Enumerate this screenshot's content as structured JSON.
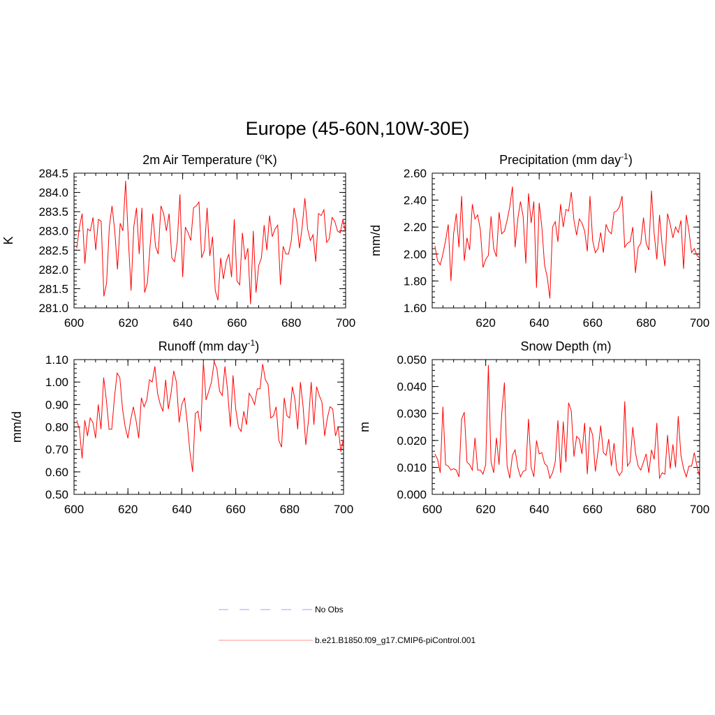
{
  "title": "Europe (45-60N,10W-30E)",
  "colors": {
    "series": "#ff0000",
    "obs": "#a0a0ff"
  },
  "legend": [
    {
      "label": "No Obs",
      "style": "dashed",
      "color": "#a0a0ff"
    },
    {
      "label": "b.e21.B1850.f09_g17.CMIP6-piControl.001",
      "style": "solid",
      "color": "#ff9090"
    }
  ],
  "chart_data": [
    {
      "type": "line",
      "title": "2m Air Temperature (",
      "title_sup": "o",
      "title_after": "K)",
      "title_sup2": "",
      "title_after2": "",
      "ylabel": "K",
      "xlim": [
        600,
        700
      ],
      "ylim": [
        281.0,
        284.5
      ],
      "xticks": [
        600,
        620,
        640,
        660,
        680,
        700
      ],
      "xtick_labels": [
        "600",
        "620",
        "640",
        "660",
        "680",
        "700"
      ],
      "yticks": [
        281.0,
        281.5,
        282.0,
        282.5,
        283.0,
        283.5,
        284.0,
        284.5
      ],
      "ytick_labels": [
        "281.0",
        "281.5",
        "282.0",
        "282.5",
        "283.0",
        "283.5",
        "284.0",
        "284.5"
      ],
      "yminor_step": 0.1,
      "xminor_step": 4,
      "series": [
        {
          "name": "b.e21.B1850.f09_g17.CMIP6-piControl.001",
          "x_start": 601,
          "values": [
            282.55,
            283.1,
            283.45,
            282.15,
            283.05,
            283.0,
            283.35,
            282.5,
            283.3,
            283.25,
            281.3,
            281.65,
            283.1,
            283.65,
            283.0,
            282.0,
            283.2,
            283.0,
            284.3,
            282.8,
            281.45,
            283.1,
            283.6,
            282.4,
            283.6,
            281.4,
            281.65,
            282.6,
            283.45,
            282.6,
            282.4,
            283.65,
            283.45,
            283.0,
            283.45,
            282.3,
            282.2,
            282.7,
            283.95,
            281.8,
            283.1,
            282.95,
            282.75,
            283.6,
            283.65,
            283.75,
            282.3,
            282.5,
            283.6,
            282.35,
            282.85,
            281.45,
            281.2,
            282.3,
            281.75,
            282.2,
            282.4,
            281.8,
            283.3,
            281.7,
            281.6,
            282.95,
            282.25,
            282.55,
            281.1,
            283.0,
            281.4,
            282.1,
            282.3,
            283.15,
            282.5,
            283.4,
            282.85,
            283.05,
            283.15,
            281.6,
            282.6,
            282.4,
            282.4,
            282.75,
            283.6,
            283.25,
            282.55,
            283.1,
            283.85,
            283.05,
            282.75,
            282.9,
            282.2,
            283.45,
            283.4,
            283.55,
            282.7,
            282.8,
            283.35,
            283.25,
            283.0,
            282.95,
            283.3,
            282.95
          ]
        }
      ]
    },
    {
      "type": "line",
      "title": "Precipitation (mm day",
      "title_sup": "-1",
      "title_after": ")",
      "title_sup2": "",
      "title_after2": "",
      "ylabel": "mm/d",
      "xlim": [
        600,
        700
      ],
      "ylim": [
        1.6,
        2.6
      ],
      "xticks": [
        620,
        640,
        660,
        680,
        700
      ],
      "xtick_labels": [
        "620",
        "640",
        "660",
        "680",
        "700"
      ],
      "yticks": [
        1.6,
        1.8,
        2.0,
        2.2,
        2.4,
        2.6
      ],
      "ytick_labels": [
        "1.60",
        "1.80",
        "2.00",
        "2.20",
        "2.40",
        "2.60"
      ],
      "yminor_step": 0.04,
      "xminor_step": 4,
      "series": [
        {
          "name": "b.e21.B1850.f09_g17.CMIP6-piControl.001",
          "x_start": 601,
          "values": [
            2.06,
            1.95,
            1.92,
            2.0,
            2.1,
            2.22,
            1.8,
            2.15,
            2.3,
            2.05,
            2.43,
            1.95,
            2.12,
            2.03,
            2.37,
            2.26,
            2.29,
            2.18,
            1.9,
            1.96,
            1.99,
            2.28,
            2.04,
            1.98,
            2.31,
            2.15,
            2.17,
            2.25,
            2.35,
            2.5,
            2.05,
            2.26,
            2.39,
            2.28,
            1.93,
            2.45,
            2.23,
            2.39,
            1.75,
            2.38,
            2.2,
            1.92,
            1.83,
            1.67,
            2.2,
            2.24,
            2.09,
            2.37,
            2.2,
            2.33,
            2.32,
            2.46,
            2.25,
            2.14,
            2.26,
            2.23,
            2.17,
            2.02,
            2.43,
            2.1,
            2.01,
            2.04,
            2.16,
            2.01,
            2.22,
            2.17,
            2.15,
            2.31,
            2.32,
            2.35,
            2.43,
            2.05,
            2.08,
            2.09,
            2.2,
            1.86,
            2.05,
            2.08,
            2.27,
            2.08,
            2.03,
            2.47,
            2.15,
            1.96,
            2.29,
            2.06,
            1.91,
            2.3,
            2.22,
            2.12,
            2.2,
            2.16,
            2.25,
            1.89,
            2.29,
            2.17,
            2.01,
            2.04,
            1.99,
            1.97
          ]
        }
      ]
    },
    {
      "type": "line",
      "title": "Runoff (mm day",
      "title_sup": "-1",
      "title_after": ")",
      "title_sup2": "",
      "title_after2": "",
      "ylabel": "mm/d",
      "xlim": [
        600,
        700
      ],
      "ylim": [
        0.5,
        1.1
      ],
      "xticks": [
        600,
        620,
        640,
        660,
        680,
        700
      ],
      "xtick_labels": [
        "600",
        "620",
        "640",
        "660",
        "680",
        "700"
      ],
      "yticks": [
        0.5,
        0.6,
        0.7,
        0.8,
        0.9,
        1.0,
        1.1
      ],
      "ytick_labels": [
        "0.50",
        "0.60",
        "0.70",
        "0.80",
        "0.90",
        "1.00",
        "1.10"
      ],
      "yminor_step": 0.02,
      "xminor_step": 4,
      "series": [
        {
          "name": "b.e21.B1850.f09_g17.CMIP6-piControl.001",
          "x_start": 601,
          "values": [
            0.83,
            0.79,
            0.66,
            0.83,
            0.76,
            0.84,
            0.82,
            0.75,
            0.9,
            0.79,
            1.02,
            0.92,
            0.79,
            0.79,
            0.93,
            1.04,
            1.02,
            0.88,
            0.8,
            0.75,
            0.83,
            0.89,
            0.83,
            0.75,
            0.93,
            0.89,
            0.92,
            1.01,
            1.0,
            1.07,
            0.95,
            0.9,
            0.87,
            1.01,
            0.88,
            0.95,
            1.05,
            1.0,
            0.82,
            0.9,
            0.93,
            0.82,
            0.69,
            0.6,
            0.86,
            0.87,
            0.78,
            1.09,
            0.92,
            0.96,
            1.0,
            1.09,
            1.06,
            0.96,
            0.94,
            1.07,
            0.96,
            0.8,
            1.03,
            0.88,
            0.8,
            0.78,
            0.87,
            0.81,
            0.95,
            0.93,
            0.9,
            0.97,
            0.97,
            1.08,
            1.01,
            0.99,
            0.84,
            0.85,
            0.89,
            0.74,
            0.71,
            0.93,
            0.85,
            0.84,
            0.98,
            0.92,
            0.79,
            1.0,
            0.89,
            0.72,
            0.83,
            1.0,
            0.81,
            0.98,
            0.94,
            0.91,
            0.76,
            0.84,
            0.89,
            0.88,
            0.76,
            0.8,
            0.69,
            0.75
          ]
        }
      ]
    },
    {
      "type": "line",
      "title": "Snow Depth (m)",
      "title_sup": "",
      "title_after": "",
      "title_sup2": "",
      "title_after2": "",
      "ylabel": "m",
      "xlim": [
        600,
        700
      ],
      "ylim": [
        0.0,
        0.05
      ],
      "xticks": [
        600,
        620,
        640,
        660,
        680,
        700
      ],
      "xtick_labels": [
        "600",
        "620",
        "640",
        "660",
        "680",
        "700"
      ],
      "yticks": [
        0.0,
        0.01,
        0.02,
        0.03,
        0.04,
        0.05
      ],
      "ytick_labels": [
        "0.000",
        "0.010",
        "0.020",
        "0.030",
        "0.040",
        "0.050"
      ],
      "yminor_step": 0.002,
      "xminor_step": 4,
      "series": [
        {
          "name": "b.e21.B1850.f09_g17.CMIP6-piControl.001",
          "x_start": 601,
          "values": [
            0.015,
            0.013,
            0.008,
            0.0325,
            0.011,
            0.0105,
            0.009,
            0.0095,
            0.009,
            0.0065,
            0.028,
            0.0305,
            0.012,
            0.011,
            0.009,
            0.021,
            0.009,
            0.009,
            0.0075,
            0.011,
            0.048,
            0.012,
            0.008,
            0.021,
            0.011,
            0.03,
            0.0415,
            0.0105,
            0.006,
            0.0145,
            0.0165,
            0.01,
            0.0065,
            0.0085,
            0.009,
            0.028,
            0.01,
            0.0065,
            0.02,
            0.015,
            0.0155,
            0.0115,
            0.0105,
            0.006,
            0.008,
            0.012,
            0.0275,
            0.008,
            0.027,
            0.012,
            0.034,
            0.031,
            0.014,
            0.0215,
            0.0205,
            0.015,
            0.0265,
            0.0075,
            0.025,
            0.022,
            0.0085,
            0.016,
            0.0255,
            0.0155,
            0.0145,
            0.0205,
            0.0105,
            0.019,
            0.009,
            0.007,
            0.0085,
            0.0345,
            0.0105,
            0.012,
            0.025,
            0.0155,
            0.0105,
            0.009,
            0.012,
            0.015,
            0.008,
            0.0165,
            0.013,
            0.0265,
            0.006,
            0.008,
            0.0075,
            0.022,
            0.0095,
            0.0185,
            0.01,
            0.029,
            0.0145,
            0.0095,
            0.0065,
            0.0105,
            0.0105,
            0.0155,
            0.0105,
            0.0065
          ]
        }
      ]
    }
  ]
}
